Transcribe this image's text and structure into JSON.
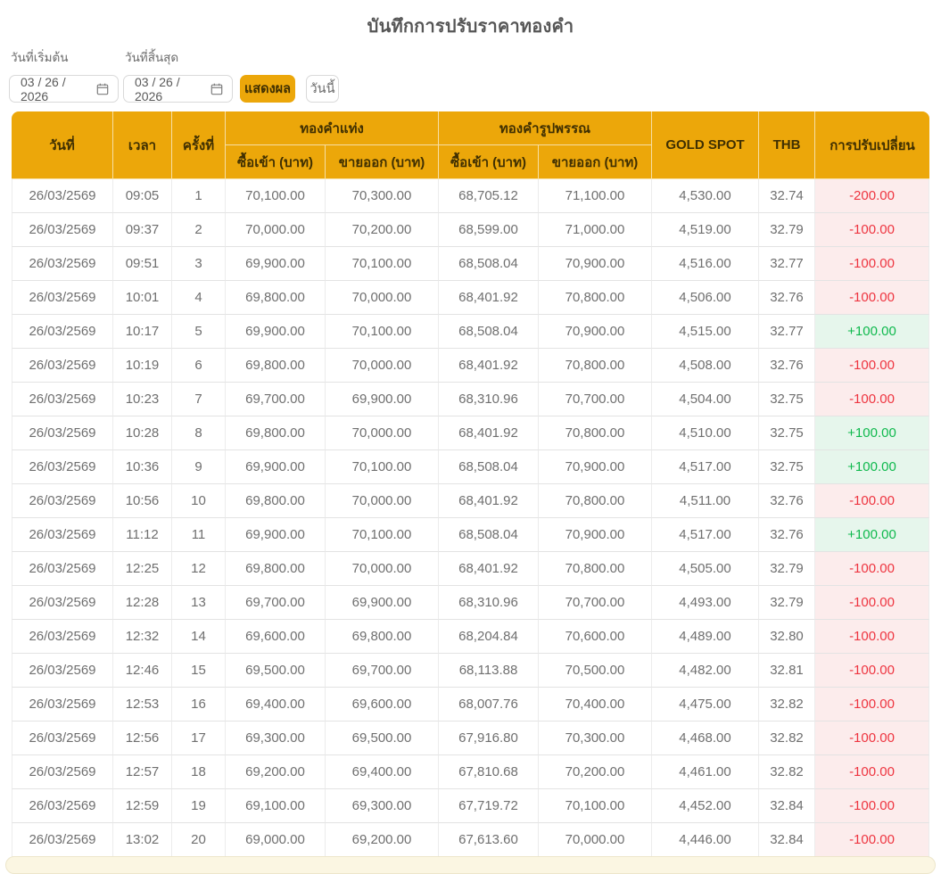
{
  "title": "บันทึกการปรับราคาทองคำ",
  "filters": {
    "start_label": "วันที่เริ่มต้น",
    "end_label": "วันที่สิ้นสุด",
    "start_value": "03 / 26 / 2026",
    "end_value": "03 / 26 / 2026",
    "show_button_label": "แสดงผล",
    "today_button_label": "วันนี้"
  },
  "table": {
    "headers": {
      "date": "วันที่",
      "time": "เวลา",
      "round": "ครั้งที่",
      "gold_bar_group": "ทองคำแท่ง",
      "gold_jewelry_group": "ทองคำรูปพรรณ",
      "buy": "ซื้อเข้า (บาท)",
      "sell": "ขายออก (บาท)",
      "gold_spot": "GOLD SPOT",
      "thb": "THB",
      "change": "การปรับเปลี่ยน"
    },
    "rows": [
      [
        "26/03/2569",
        "09:05",
        "1",
        "70,100.00",
        "70,300.00",
        "68,705.12",
        "71,100.00",
        "4,530.00",
        "32.74",
        "-200.00"
      ],
      [
        "26/03/2569",
        "09:37",
        "2",
        "70,000.00",
        "70,200.00",
        "68,599.00",
        "71,000.00",
        "4,519.00",
        "32.79",
        "-100.00"
      ],
      [
        "26/03/2569",
        "09:51",
        "3",
        "69,900.00",
        "70,100.00",
        "68,508.04",
        "70,900.00",
        "4,516.00",
        "32.77",
        "-100.00"
      ],
      [
        "26/03/2569",
        "10:01",
        "4",
        "69,800.00",
        "70,000.00",
        "68,401.92",
        "70,800.00",
        "4,506.00",
        "32.76",
        "-100.00"
      ],
      [
        "26/03/2569",
        "10:17",
        "5",
        "69,900.00",
        "70,100.00",
        "68,508.04",
        "70,900.00",
        "4,515.00",
        "32.77",
        "+100.00"
      ],
      [
        "26/03/2569",
        "10:19",
        "6",
        "69,800.00",
        "70,000.00",
        "68,401.92",
        "70,800.00",
        "4,508.00",
        "32.76",
        "-100.00"
      ],
      [
        "26/03/2569",
        "10:23",
        "7",
        "69,700.00",
        "69,900.00",
        "68,310.96",
        "70,700.00",
        "4,504.00",
        "32.75",
        "-100.00"
      ],
      [
        "26/03/2569",
        "10:28",
        "8",
        "69,800.00",
        "70,000.00",
        "68,401.92",
        "70,800.00",
        "4,510.00",
        "32.75",
        "+100.00"
      ],
      [
        "26/03/2569",
        "10:36",
        "9",
        "69,900.00",
        "70,100.00",
        "68,508.04",
        "70,900.00",
        "4,517.00",
        "32.75",
        "+100.00"
      ],
      [
        "26/03/2569",
        "10:56",
        "10",
        "69,800.00",
        "70,000.00",
        "68,401.92",
        "70,800.00",
        "4,511.00",
        "32.76",
        "-100.00"
      ],
      [
        "26/03/2569",
        "11:12",
        "11",
        "69,900.00",
        "70,100.00",
        "68,508.04",
        "70,900.00",
        "4,517.00",
        "32.76",
        "+100.00"
      ],
      [
        "26/03/2569",
        "12:25",
        "12",
        "69,800.00",
        "70,000.00",
        "68,401.92",
        "70,800.00",
        "4,505.00",
        "32.79",
        "-100.00"
      ],
      [
        "26/03/2569",
        "12:28",
        "13",
        "69,700.00",
        "69,900.00",
        "68,310.96",
        "70,700.00",
        "4,493.00",
        "32.79",
        "-100.00"
      ],
      [
        "26/03/2569",
        "12:32",
        "14",
        "69,600.00",
        "69,800.00",
        "68,204.84",
        "70,600.00",
        "4,489.00",
        "32.80",
        "-100.00"
      ],
      [
        "26/03/2569",
        "12:46",
        "15",
        "69,500.00",
        "69,700.00",
        "68,113.88",
        "70,500.00",
        "4,482.00",
        "32.81",
        "-100.00"
      ],
      [
        "26/03/2569",
        "12:53",
        "16",
        "69,400.00",
        "69,600.00",
        "68,007.76",
        "70,400.00",
        "4,475.00",
        "32.82",
        "-100.00"
      ],
      [
        "26/03/2569",
        "12:56",
        "17",
        "69,300.00",
        "69,500.00",
        "67,916.80",
        "70,300.00",
        "4,468.00",
        "32.82",
        "-100.00"
      ],
      [
        "26/03/2569",
        "12:57",
        "18",
        "69,200.00",
        "69,400.00",
        "67,810.68",
        "70,200.00",
        "4,461.00",
        "32.82",
        "-100.00"
      ],
      [
        "26/03/2569",
        "12:59",
        "19",
        "69,100.00",
        "69,300.00",
        "67,719.72",
        "70,100.00",
        "4,452.00",
        "32.84",
        "-100.00"
      ],
      [
        "26/03/2569",
        "13:02",
        "20",
        "69,000.00",
        "69,200.00",
        "67,613.60",
        "70,000.00",
        "4,446.00",
        "32.84",
        "-100.00"
      ]
    ]
  },
  "colors": {
    "header_bg": "#ECA70A",
    "header_text": "#3F2F02",
    "negative_bg": "#FCECEC",
    "negative_text": "#EE3540",
    "positive_bg": "#E6F6EC",
    "positive_text": "#10B94E"
  }
}
